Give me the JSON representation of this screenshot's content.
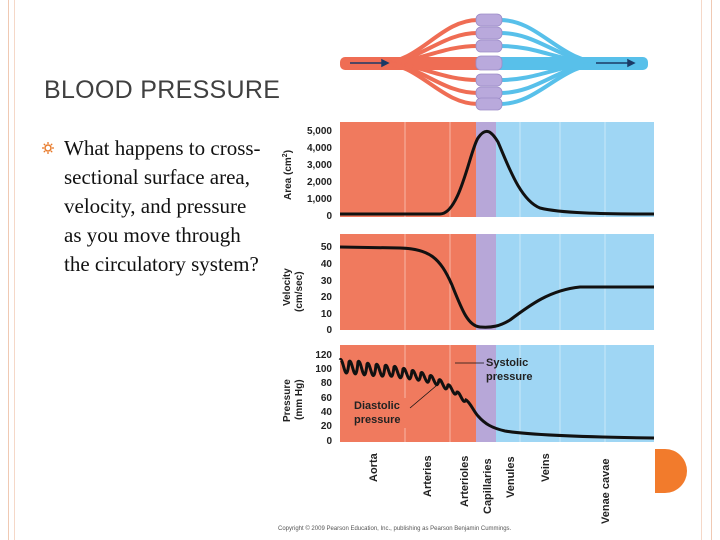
{
  "slide": {
    "title": "BLOOD PRESSURE",
    "bullet": "What happens to cross-sectional surface area, velocity, and pressure as you move through the circulatory system?",
    "footer": "Copyright © 2009 Pearson Education, Inc., publishing as Pearson Benjamin Cummings."
  },
  "colors": {
    "arterial": "#f07a5e",
    "capillary": "#b7a7d8",
    "venous": "#9fd6f4",
    "accent": "#f27b2c"
  },
  "figure": {
    "categories": [
      "Aorta",
      "Arteries",
      "Arterioles",
      "Capillaries",
      "Venules",
      "Veins",
      "Venae cavae"
    ],
    "annotations": {
      "systolic_line1": "Systolic",
      "systolic_line2": "pressure",
      "diastolic_line1": "Diastolic",
      "diastolic_line2": "pressure"
    },
    "panels": [
      {
        "id": "area",
        "ylabel_line1": "Area (cm",
        "ylabel_sup": "2",
        "ylabel_close": ")",
        "ticks": [
          "5,000",
          "4,000",
          "3,000",
          "2,000",
          "1,000",
          "0"
        ]
      },
      {
        "id": "velocity",
        "ylabel_line1": "Velocity",
        "ylabel_line2": "(cm/sec)",
        "ticks": [
          "50",
          "40",
          "30",
          "20",
          "10",
          "0"
        ]
      },
      {
        "id": "pressure",
        "ylabel_line1": "Pressure",
        "ylabel_line2": "(mm Hg)",
        "ticks": [
          "120",
          "100",
          "80",
          "60",
          "40",
          "20",
          "0"
        ]
      }
    ]
  }
}
